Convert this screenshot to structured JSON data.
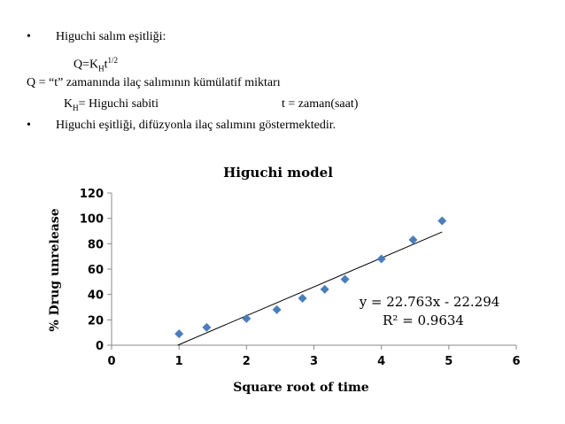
{
  "text": {
    "bullet_symbol": "•",
    "line1": "Higuchi  salım eşitliği:",
    "eq_prefix": "Q=K",
    "eq_sub": "H",
    "eq_t": "t",
    "eq_sup": "1/2",
    "line3": "Q = “t” zamanında ilaç salımının kümülatif miktarı",
    "kh_k": "K",
    "kh_sub": "H",
    "kh_rest": "=   Higuchi sabiti",
    "t_def": "t  =  zaman(saat)",
    "line5": "Higuchi eşitliği, difüzyonla ilaç salımını göstermektedir."
  },
  "chart_data": {
    "type": "scatter",
    "title": "Higuchi model",
    "xlabel": "Square root of time",
    "ylabel": "% Drug unrelease",
    "xlim": [
      0,
      6
    ],
    "ylim": [
      0,
      120
    ],
    "x_ticks": [
      0,
      1,
      2,
      3,
      4,
      5,
      6
    ],
    "y_ticks": [
      0,
      20,
      40,
      60,
      80,
      100,
      120
    ],
    "grid": false,
    "points": [
      {
        "x": 1.0,
        "y": 9
      },
      {
        "x": 1.41,
        "y": 14
      },
      {
        "x": 2.0,
        "y": 21
      },
      {
        "x": 2.45,
        "y": 28
      },
      {
        "x": 2.83,
        "y": 37
      },
      {
        "x": 3.16,
        "y": 44
      },
      {
        "x": 3.46,
        "y": 52
      },
      {
        "x": 4.0,
        "y": 68
      },
      {
        "x": 4.47,
        "y": 83
      },
      {
        "x": 4.9,
        "y": 98
      }
    ],
    "trendline": {
      "slope": 22.763,
      "intercept": -22.294,
      "x_range": [
        0.98,
        4.9
      ]
    },
    "equation": "y = 22.763x - 22.294",
    "r_squared": "R² = 0.9634",
    "marker_color": "#4a7ebb",
    "line_color": "#000000"
  }
}
